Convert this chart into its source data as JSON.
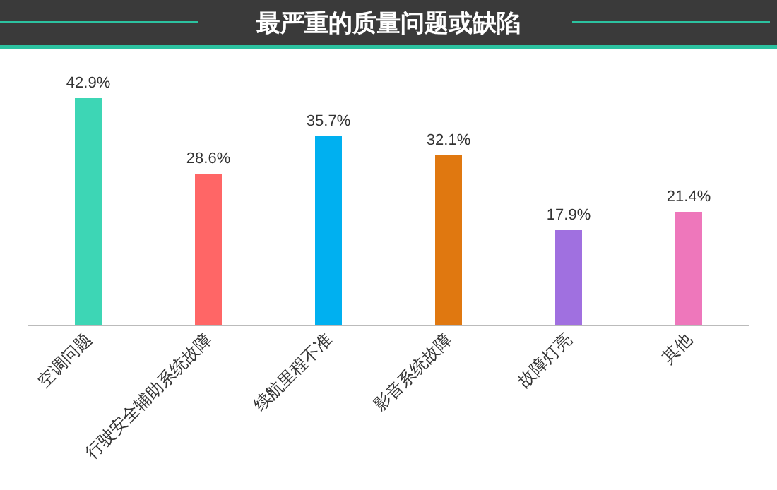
{
  "chart_data": {
    "type": "bar",
    "title": "最严重的质量问题或缺陷",
    "categories": [
      "空调问题",
      "行驶安全辅助系统故障",
      "续航里程不准",
      "影音系统故障",
      "故障灯亮",
      "其他"
    ],
    "values": [
      42.9,
      28.6,
      35.7,
      32.1,
      17.9,
      21.4
    ],
    "colors": [
      "#3dd6b5",
      "#ff6666",
      "#00b0f0",
      "#e07810",
      "#a070e0",
      "#ee77bb"
    ],
    "value_labels": [
      "42.9%",
      "28.6%",
      "35.7%",
      "32.1%",
      "17.9%",
      "21.4%"
    ]
  }
}
